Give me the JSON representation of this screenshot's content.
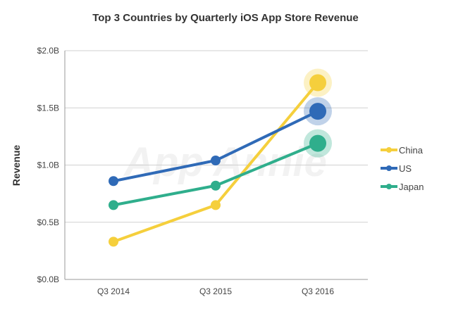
{
  "chart_data": {
    "type": "line",
    "title": "Top 3 Countries by Quarterly iOS App Store Revenue",
    "xlabel": "",
    "ylabel": "Revenue",
    "categories": [
      "Q3 2014",
      "Q3 2015",
      "Q3 2016"
    ],
    "ylim": [
      0,
      2.0
    ],
    "yticks": [
      0,
      0.5,
      1.0,
      1.5,
      2.0
    ],
    "ytick_labels": [
      "$0.0B",
      "$0.5B",
      "$1.0B",
      "$1.5B",
      "$2.0B"
    ],
    "grid": true,
    "legend_position": "right",
    "watermark": "App Annie",
    "series": [
      {
        "name": "China",
        "color": "#F5CF3C",
        "values": [
          0.33,
          0.65,
          1.72
        ]
      },
      {
        "name": "US",
        "color": "#2F6AB7",
        "values": [
          0.86,
          1.04,
          1.47
        ]
      },
      {
        "name": "Japan",
        "color": "#2FAE8C",
        "values": [
          0.65,
          0.82,
          1.19
        ]
      }
    ]
  }
}
